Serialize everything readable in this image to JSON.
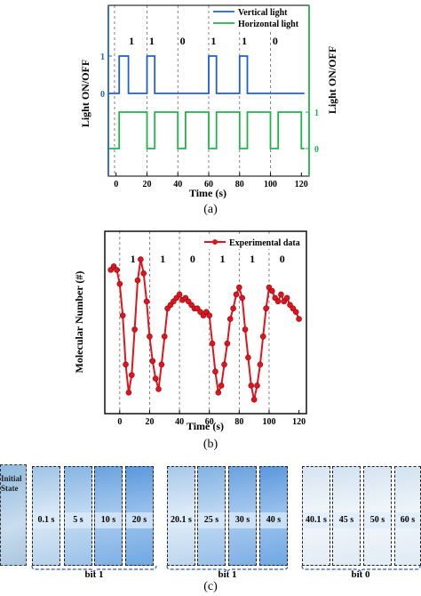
{
  "panel_a": {
    "caption": "(a)",
    "legend": [
      "Vertical light",
      "Horizontal light"
    ],
    "colors": {
      "vertical": "#1f5fd0",
      "horizontal": "#22b24c",
      "axis_left": "#1f5fd0",
      "axis_right": "#22b24c"
    },
    "bits": [
      "1",
      "1",
      "0",
      "1",
      "1",
      "0"
    ],
    "xlabel": "Time (s)",
    "ylabel_left": "Light ON/OFF",
    "ylabel_right": "Light ON/OFF",
    "ytick_left": [
      "1",
      "0"
    ],
    "ytick_right": [
      "1",
      "0"
    ]
  },
  "panel_b": {
    "caption": "(b)",
    "legend": "Experimental data",
    "color": "#e0141e",
    "bits": [
      "1",
      "1",
      "0",
      "1",
      "1",
      "0"
    ],
    "xlabel": "Time (s)",
    "ylabel": "Molecular Number (#)"
  },
  "panel_c": {
    "caption": "(c)",
    "initial_state": "Initial State",
    "frames": [
      "0.1 s",
      "5 s",
      "10 s",
      "20 s",
      "20.1 s",
      "25 s",
      "30 s",
      "40 s",
      "40.1 s",
      "45 s",
      "50 s",
      "60 s"
    ],
    "bit_labels": [
      "bit 1",
      "bit 1",
      "bit 0"
    ]
  },
  "chart_data": [
    {
      "type": "line",
      "title": "",
      "xlabel": "Time (s)",
      "ylabel": "Light ON/OFF",
      "xlim": [
        -5,
        125
      ],
      "xticks": [
        0,
        20,
        40,
        60,
        80,
        100,
        120
      ],
      "series": [
        {
          "name": "Vertical light",
          "axis": "left",
          "yticks": [
            "0",
            "1"
          ],
          "x": [
            -5,
            2,
            2,
            8,
            8,
            20,
            20,
            25,
            25,
            60,
            60,
            65,
            65,
            80,
            80,
            85,
            85,
            122
          ],
          "y": [
            0,
            0,
            1,
            1,
            0,
            0,
            1,
            1,
            0,
            0,
            1,
            1,
            0,
            0,
            1,
            1,
            0,
            0
          ]
        },
        {
          "name": "Horizontal light",
          "axis": "right",
          "yticks": [
            "0",
            "1"
          ],
          "x": [
            -5,
            2,
            2,
            20,
            20,
            25,
            25,
            40,
            40,
            45,
            45,
            60,
            60,
            65,
            65,
            80,
            80,
            85,
            85,
            100,
            100,
            105,
            105,
            120,
            120,
            122
          ],
          "y": [
            0,
            0,
            1,
            1,
            0,
            0,
            1,
            1,
            0,
            0,
            1,
            1,
            0,
            0,
            1,
            1,
            0,
            0,
            1,
            1,
            0,
            0,
            1,
            1,
            0,
            0
          ]
        }
      ],
      "annotations": [
        "1",
        "1",
        "0",
        "1",
        "1",
        "0"
      ],
      "legend_position": "top-right"
    },
    {
      "type": "line",
      "title": "",
      "xlabel": "Time (s)",
      "ylabel": "Molecular Number (#)",
      "xlim": [
        -10,
        125
      ],
      "xticks": [
        0,
        20,
        40,
        60,
        80,
        100,
        120
      ],
      "ylim": [
        0,
        260
      ],
      "series": [
        {
          "name": "Experimental data",
          "x": [
            -6,
            -4,
            -2,
            0,
            2,
            4,
            6,
            8,
            10,
            12,
            14,
            16,
            18,
            20,
            22,
            24,
            26,
            28,
            30,
            32,
            34,
            36,
            38,
            40,
            42,
            44,
            46,
            48,
            50,
            52,
            54,
            56,
            58,
            60,
            62,
            64,
            66,
            68,
            70,
            72,
            74,
            76,
            78,
            80,
            82,
            84,
            86,
            88,
            90,
            92,
            94,
            96,
            98,
            100,
            102,
            104,
            106,
            108,
            110,
            112,
            114,
            116,
            118,
            120
          ],
          "y": [
            205,
            210,
            205,
            185,
            140,
            70,
            30,
            55,
            120,
            190,
            220,
            200,
            160,
            110,
            75,
            50,
            35,
            70,
            110,
            150,
            155,
            160,
            165,
            170,
            162,
            165,
            160,
            155,
            150,
            150,
            145,
            140,
            145,
            140,
            100,
            60,
            30,
            40,
            70,
            100,
            135,
            150,
            170,
            180,
            165,
            120,
            80,
            40,
            20,
            40,
            70,
            110,
            150,
            180,
            175,
            165,
            160,
            170,
            160,
            165,
            155,
            150,
            145,
            135
          ]
        }
      ],
      "annotations": [
        "1",
        "1",
        "0",
        "1",
        "1",
        "0"
      ],
      "legend_position": "top-right"
    }
  ]
}
